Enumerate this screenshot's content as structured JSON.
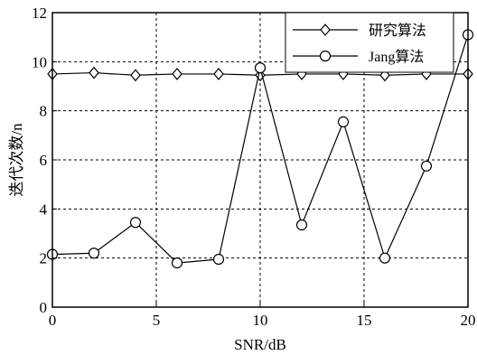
{
  "chart_data": {
    "type": "line",
    "xlabel": "SNR/dB",
    "ylabel": "迭代次数/n",
    "xlim": [
      0,
      20
    ],
    "ylim": [
      0,
      12
    ],
    "xticks": [
      "0",
      "5",
      "10",
      "15",
      "20"
    ],
    "yticks": [
      "0",
      "2",
      "4",
      "6",
      "8",
      "10",
      "12"
    ],
    "grid": true,
    "legend_position": "top-right",
    "x": [
      0,
      2,
      4,
      6,
      8,
      10,
      12,
      14,
      16,
      18,
      20
    ],
    "series": [
      {
        "name": "研究算法",
        "marker": "diamond",
        "values": [
          9.5,
          9.55,
          9.45,
          9.5,
          9.5,
          9.45,
          9.5,
          9.5,
          9.45,
          9.5,
          9.5
        ]
      },
      {
        "name": "Jang算法",
        "marker": "circle",
        "values": [
          2.15,
          2.2,
          3.45,
          1.8,
          1.95,
          9.75,
          3.35,
          7.55,
          2.0,
          5.75,
          11.1
        ]
      }
    ]
  }
}
